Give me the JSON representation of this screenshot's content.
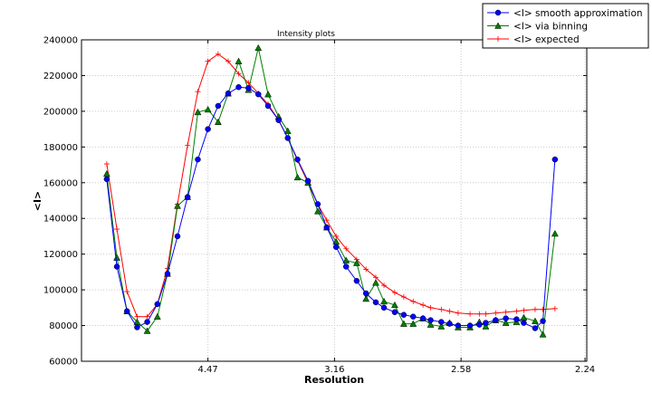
{
  "chart_data": {
    "type": "line",
    "title": "Intensity plots",
    "xlabel": "Resolution",
    "ylabel": "<I>",
    "x_scale": "1/d^2 (reciprocal square)",
    "xlim_resolution": [
      "inf",
      2.24
    ],
    "ylim": [
      60000,
      240000
    ],
    "xticks": [
      4.47,
      3.16,
      2.58,
      2.24
    ],
    "xtick_labels": [
      "4.47",
      "3.16",
      "2.58",
      "2.24"
    ],
    "yticks": [
      60000,
      80000,
      100000,
      120000,
      140000,
      160000,
      180000,
      200000,
      220000,
      240000
    ],
    "ytick_labels": [
      "60000",
      "80000",
      "100000",
      "120000",
      "140000",
      "160000",
      "180000",
      "200000",
      "220000",
      "240000"
    ],
    "grid": true,
    "legend_position": "top-right (outside)",
    "series": [
      {
        "name": "<I> smooth approximation",
        "color": "#0000ff",
        "marker": "circle",
        "values": [
          162000,
          113000,
          88000,
          79000,
          82000,
          92000,
          109000,
          130000,
          152000,
          173000,
          190000,
          203000,
          210000,
          213500,
          213000,
          209500,
          203000,
          195000,
          185000,
          173000,
          161000,
          148000,
          135000,
          124000,
          113000,
          105000,
          98000,
          93000,
          90000,
          87500,
          86000,
          85000,
          84000,
          83000,
          82000,
          81000,
          80000,
          80000,
          80500,
          81500,
          83000,
          84000,
          83500,
          81500,
          78500,
          82500,
          173000
        ]
      },
      {
        "name": "<I> via binning",
        "color": "#007f00",
        "marker": "triangle",
        "values": [
          165000,
          118000,
          88000,
          82000,
          77000,
          85000,
          109000,
          147000,
          152000,
          199500,
          201000,
          194000,
          210000,
          228000,
          212000,
          235500,
          209500,
          197000,
          189000,
          163000,
          160000,
          144000,
          135000,
          127000,
          116500,
          115000,
          95000,
          104000,
          93500,
          91500,
          81000,
          81000,
          84000,
          80500,
          79500,
          81500,
          79000,
          79000,
          82000,
          79500,
          83000,
          81500,
          82000,
          84500,
          82500,
          75000,
          131500
        ]
      },
      {
        "name": "<I> expected",
        "color": "#ff0000",
        "marker": "plus",
        "values": [
          170500,
          134000,
          99000,
          85000,
          85000,
          92000,
          112000,
          148000,
          181000,
          211000,
          228000,
          232000,
          228000,
          221000,
          216000,
          210000,
          204000,
          195000,
          185000,
          172500,
          160000,
          148000,
          139000,
          130000,
          123000,
          117000,
          111500,
          107000,
          102500,
          98500,
          96000,
          93500,
          91500,
          90000,
          89000,
          88000,
          87000,
          86500,
          86500,
          86500,
          87000,
          87500,
          88000,
          88500,
          89000,
          89000,
          89500
        ]
      }
    ],
    "x_resolution": [
      10.0,
      8.45,
      7.45,
      6.74,
      6.2,
      5.77,
      5.42,
      5.13,
      4.88,
      4.66,
      4.47,
      4.3,
      4.15,
      4.01,
      3.89,
      3.78,
      3.68,
      3.58,
      3.5,
      3.42,
      3.34,
      3.27,
      3.21,
      3.15,
      3.09,
      3.03,
      2.98,
      2.93,
      2.89,
      2.84,
      2.8,
      2.76,
      2.72,
      2.69,
      2.65,
      2.62,
      2.59,
      2.55,
      2.52,
      2.5,
      2.47,
      2.44,
      2.41,
      2.39,
      2.36,
      2.34,
      2.31
    ]
  }
}
